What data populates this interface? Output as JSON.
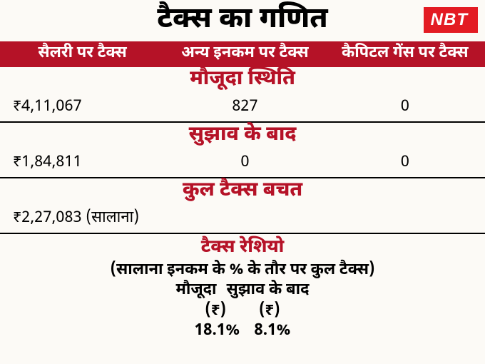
{
  "title": "टैक्स का गणित",
  "logo": "NBT",
  "brand_color": "#b51227",
  "logo_bg": "#e31b23",
  "bg_color": "#fcfaf6",
  "headers": {
    "c1": "सैलरी पर टैक्स",
    "c2": "अन्य इनकम पर टैक्स",
    "c3": "कैपिटल गेंस पर टैक्स"
  },
  "current": {
    "label": "मौजूदा स्थिति",
    "c1": "₹4,11,067",
    "c2": "827",
    "c3": "0"
  },
  "after": {
    "label": "सुझाव के बाद",
    "c1": "₹1,84,811",
    "c2": "0",
    "c3": "0"
  },
  "savings": {
    "label": "कुल टैक्स बचत",
    "value": "₹2,27,083 (सालाना)"
  },
  "ratio": {
    "title": "टैक्स रेशियो",
    "sub": "(सालाना इनकम के % के तौर पर कुल टैक्स)",
    "col1_label": "मौजूदा",
    "col2_label": "सुझाव के बाद",
    "sym1": "(₹)",
    "sym2": "(₹)",
    "val1": "18.1%",
    "val2": "8.1%"
  }
}
